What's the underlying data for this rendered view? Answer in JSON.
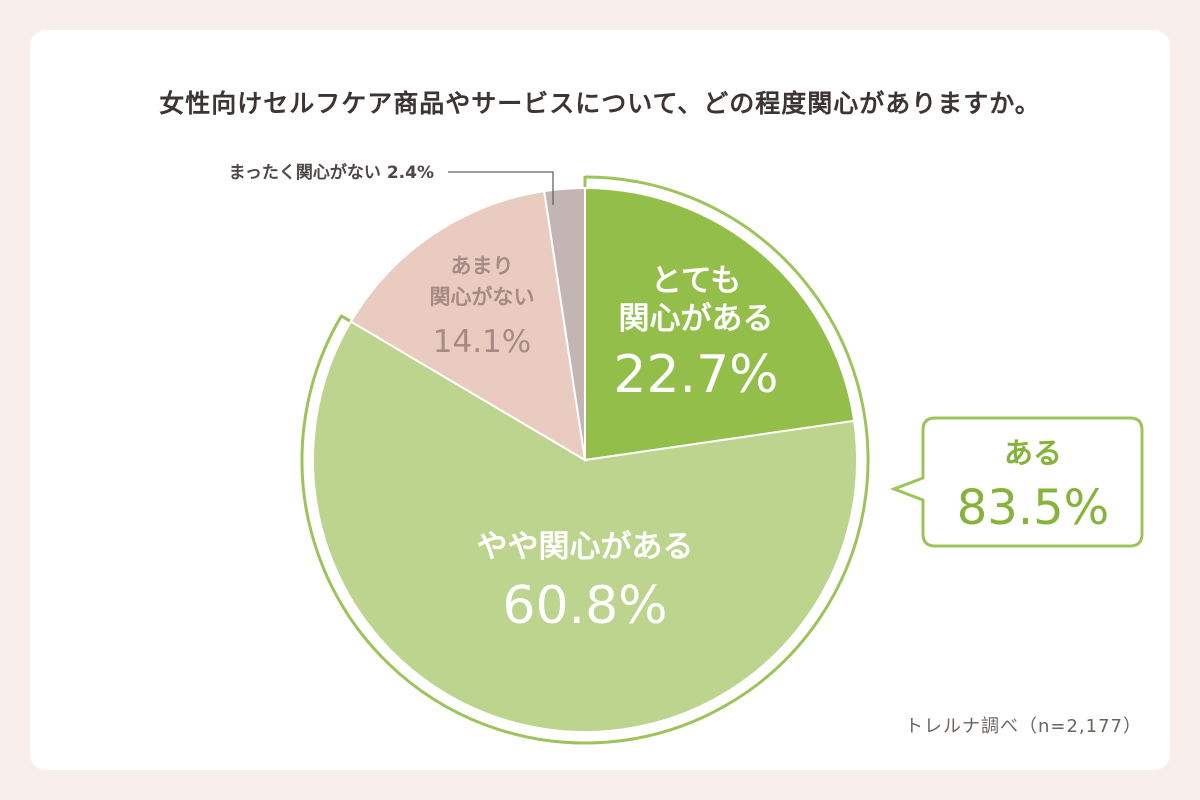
{
  "title": "女性向けセルフケア商品やサービスについて、どの程度関心がありますか。",
  "source": "トレルナ調べ（n=2,177）",
  "colors": {
    "background": "#f7eeeb",
    "very_interested": "#93be4a",
    "somewhat_interested": "#bcd48d",
    "not_very_interested": "#eacbc0",
    "not_at_all_interested": "#c4b5b5",
    "outline_green": "#9cc45a",
    "callout_text": "#86b43b",
    "not_very_text": "#a58b83",
    "small_label_text": "#4f4745"
  },
  "chart_data": {
    "type": "pie",
    "start": "top",
    "direction": "clockwise",
    "slices": [
      {
        "label_lines": [
          "とても",
          "関心がある"
        ],
        "value": 22.7,
        "display": "22.7%",
        "color_key": "very_interested"
      },
      {
        "label_lines": [
          "やや関心がある"
        ],
        "value": 60.8,
        "display": "60.8%",
        "color_key": "somewhat_interested"
      },
      {
        "label_lines": [
          "あまり",
          "関心がない"
        ],
        "value": 14.1,
        "display": "14.1%",
        "color_key": "not_very_interested"
      },
      {
        "label_lines": [
          "まったく関心がない"
        ],
        "value": 2.4,
        "display": "2.4%",
        "color_key": "not_at_all_interested"
      }
    ],
    "callout": {
      "label": "ある",
      "value": 83.5,
      "display": "83.5%"
    }
  }
}
